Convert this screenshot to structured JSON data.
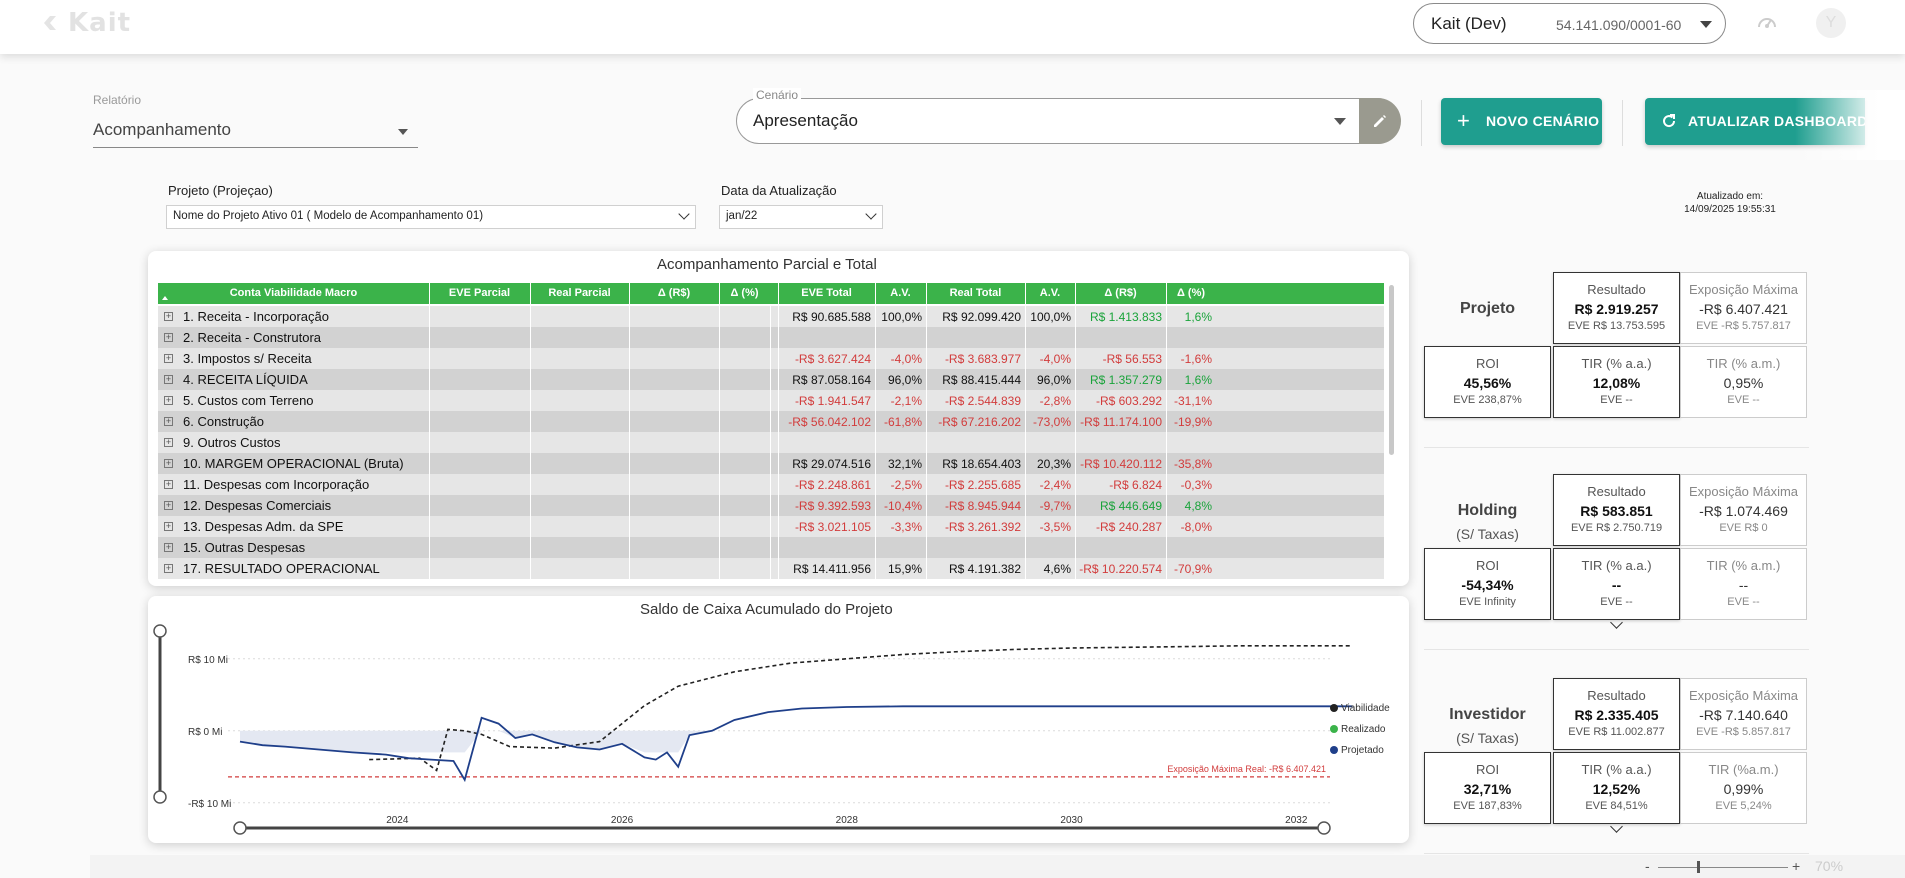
{
  "app": {
    "logo": "Kait"
  },
  "company": {
    "name": "Kait (Dev)",
    "cnpj": "54.141.090/0001-60"
  },
  "filters": {
    "relatorio_label": "Relatório",
    "relatorio_value": "Acompanhamento",
    "cenario_label": "Cenário",
    "cenario_value": "Apresentação",
    "btn_novo": "NOVO CENÁRIO",
    "btn_atualizar": "ATUALIZAR DASHBOARD"
  },
  "report": {
    "projeto_label": "Projeto (Projeçao)",
    "projeto_value": "Nome do Projeto Ativo 01 ( Modelo de Acompanhamento 01)",
    "data_label": "Data da Atualização",
    "data_value": "jan/22",
    "updated_label": "Atualizado em:",
    "updated_value": "14/09/2025 19:55:31"
  },
  "table": {
    "title": "Acompanhamento Parcial e Total",
    "headers": [
      "Conta Viabilidade Macro",
      "EVE Parcial",
      "Real Parcial",
      "Δ (R$)",
      "Δ (%)",
      "EVE Total",
      "A.V.",
      "Real Total",
      "A.V.",
      "Δ (R$)",
      "Δ (%)"
    ],
    "rows": [
      {
        "name": "1. Receita - Incorporação",
        "eve_total": "R$ 90.685.588",
        "av1": "100,0%",
        "real_total": "R$ 92.099.420",
        "av2": "100,0%",
        "d_rs": "R$ 1.413.833",
        "d_pct": "1,6%",
        "tone": [
          "blk",
          "blk",
          "blk",
          "blk",
          "pos",
          "pos"
        ]
      },
      {
        "name": "2. Receita - Construtora",
        "eve_total": "",
        "av1": "",
        "real_total": "",
        "av2": "",
        "d_rs": "",
        "d_pct": "",
        "tone": [
          "blk",
          "blk",
          "blk",
          "blk",
          "blk",
          "blk"
        ]
      },
      {
        "name": "3. Impostos s/ Receita",
        "eve_total": "-R$ 3.627.424",
        "av1": "-4,0%",
        "real_total": "-R$ 3.683.977",
        "av2": "-4,0%",
        "d_rs": "-R$ 56.553",
        "d_pct": "-1,6%",
        "tone": [
          "neg",
          "neg",
          "neg",
          "neg",
          "neg",
          "neg"
        ]
      },
      {
        "name": "4. RECEITA LÍQUIDA",
        "eve_total": "R$ 87.058.164",
        "av1": "96,0%",
        "real_total": "R$ 88.415.444",
        "av2": "96,0%",
        "d_rs": "R$ 1.357.279",
        "d_pct": "1,6%",
        "tone": [
          "blk",
          "blk",
          "blk",
          "blk",
          "pos",
          "pos"
        ]
      },
      {
        "name": "5. Custos com Terreno",
        "eve_total": "-R$ 1.941.547",
        "av1": "-2,1%",
        "real_total": "-R$ 2.544.839",
        "av2": "-2,8%",
        "d_rs": "-R$ 603.292",
        "d_pct": "-31,1%",
        "tone": [
          "neg",
          "neg",
          "neg",
          "neg",
          "neg",
          "neg"
        ]
      },
      {
        "name": "6. Construção",
        "eve_total": "-R$ 56.042.102",
        "av1": "-61,8%",
        "real_total": "-R$ 67.216.202",
        "av2": "-73,0%",
        "d_rs": "-R$ 11.174.100",
        "d_pct": "-19,9%",
        "tone": [
          "neg",
          "neg",
          "neg",
          "neg",
          "neg",
          "neg"
        ]
      },
      {
        "name": "9. Outros Custos",
        "eve_total": "",
        "av1": "",
        "real_total": "",
        "av2": "",
        "d_rs": "",
        "d_pct": "",
        "tone": [
          "blk",
          "blk",
          "blk",
          "blk",
          "blk",
          "blk"
        ]
      },
      {
        "name": "10. MARGEM OPERACIONAL (Bruta)",
        "eve_total": "R$ 29.074.516",
        "av1": "32,1%",
        "real_total": "R$ 18.654.403",
        "av2": "20,3%",
        "d_rs": "-R$ 10.420.112",
        "d_pct": "-35,8%",
        "tone": [
          "blk",
          "blk",
          "blk",
          "blk",
          "neg",
          "neg"
        ]
      },
      {
        "name": "11. Despesas com Incorporação",
        "eve_total": "-R$ 2.248.861",
        "av1": "-2,5%",
        "real_total": "-R$ 2.255.685",
        "av2": "-2,4%",
        "d_rs": "-R$ 6.824",
        "d_pct": "-0,3%",
        "tone": [
          "neg",
          "neg",
          "neg",
          "neg",
          "neg",
          "neg"
        ]
      },
      {
        "name": "12. Despesas Comerciais",
        "eve_total": "-R$ 9.392.593",
        "av1": "-10,4%",
        "real_total": "-R$ 8.945.944",
        "av2": "-9,7%",
        "d_rs": "R$ 446.649",
        "d_pct": "4,8%",
        "tone": [
          "neg",
          "neg",
          "neg",
          "neg",
          "pos",
          "pos"
        ]
      },
      {
        "name": "13. Despesas Adm. da SPE",
        "eve_total": "-R$ 3.021.105",
        "av1": "-3,3%",
        "real_total": "-R$ 3.261.392",
        "av2": "-3,5%",
        "d_rs": "-R$ 240.287",
        "d_pct": "-8,0%",
        "tone": [
          "neg",
          "neg",
          "neg",
          "neg",
          "neg",
          "neg"
        ]
      },
      {
        "name": "15. Outras Despesas",
        "eve_total": "",
        "av1": "",
        "real_total": "",
        "av2": "",
        "d_rs": "",
        "d_pct": "",
        "tone": [
          "blk",
          "blk",
          "blk",
          "blk",
          "blk",
          "blk"
        ]
      },
      {
        "name": "17. RESULTADO OPERACIONAL",
        "eve_total": "R$ 14.411.956",
        "av1": "15,9%",
        "real_total": "R$ 4.191.382",
        "av2": "4,6%",
        "d_rs": "-R$ 10.220.574",
        "d_pct": "-70,9%",
        "tone": [
          "blk",
          "blk",
          "blk",
          "blk",
          "neg",
          "neg"
        ]
      }
    ]
  },
  "kpis": [
    {
      "name": "Projeto",
      "subtitle": "",
      "resultado": {
        "title": "Resultado",
        "value": "R$ 2.919.257",
        "sub": "EVE R$ 13.753.595"
      },
      "exposicao": {
        "title": "Exposição Máxima",
        "value": "-R$ 6.407.421",
        "sub": "EVE -R$ 5.757.817"
      },
      "roi": {
        "title": "ROI",
        "value": "45,56%",
        "sub": "EVE 238,87%"
      },
      "tir_aa": {
        "title": "TIR (% a.a.)",
        "value": "12,08%",
        "sub": "EVE --"
      },
      "tir_am": {
        "title": "TIR (% a.m.)",
        "value": "0,95%",
        "sub": "EVE --"
      }
    },
    {
      "name": "Holding",
      "subtitle": "(S/ Taxas)",
      "resultado": {
        "title": "Resultado",
        "value": "R$ 583.851",
        "sub": "EVE R$ 2.750.719"
      },
      "exposicao": {
        "title": "Exposição Máxima",
        "value": "-R$ 1.074.469",
        "sub": "EVE R$ 0"
      },
      "roi": {
        "title": "ROI",
        "value": "-54,34%",
        "sub": "EVE Infinity"
      },
      "tir_aa": {
        "title": "TIR (% a.a.)",
        "value": "--",
        "sub": "EVE --"
      },
      "tir_am": {
        "title": "TIR (% a.m.)",
        "value": "--",
        "sub": "EVE --"
      }
    },
    {
      "name": "Investidor",
      "subtitle": "(S/ Taxas)",
      "resultado": {
        "title": "Resultado",
        "value": "R$ 2.335.405",
        "sub": "EVE R$ 11.002.877"
      },
      "exposicao": {
        "title": "Exposição Máxima",
        "value": "-R$ 7.140.640",
        "sub": "EVE -R$ 5.857.817"
      },
      "roi": {
        "title": "ROI",
        "value": "32,71%",
        "sub": "EVE 187,83%"
      },
      "tir_aa": {
        "title": "TIR (% a.a.)",
        "value": "12,52%",
        "sub": "EVE 84,51%"
      },
      "tir_am": {
        "title": "TIR (%a.m.)",
        "value": "0,99%",
        "sub": "EVE 5,24%"
      }
    }
  ],
  "chart_data": {
    "type": "line",
    "title": "Saldo de Caixa Acumulado do Projeto",
    "y_tick_labels": [
      "R$ 10 Mi",
      "R$ 0 Mi",
      "-R$ 10 Mi"
    ],
    "y_ticks": [
      10,
      0,
      -10
    ],
    "x_tick_labels": [
      "2024",
      "2026",
      "2028",
      "2030",
      "2032"
    ],
    "x_ticks": [
      2024,
      2026,
      2028,
      2030,
      2032
    ],
    "xlim": [
      2022.6,
      2032.3
    ],
    "ylim": [
      -11,
      14
    ],
    "grid": true,
    "legend": "right",
    "annotation": "Exposição Máxima Real: -R$ 6.407.421",
    "exposure_line": -6.4,
    "series": [
      {
        "name": "Viabilidade",
        "color": "#222222",
        "style": "dashed",
        "x": [
          2023.75,
          2024.2,
          2024.35,
          2024.45,
          2024.6,
          2024.75,
          2025.0,
          2025.4,
          2025.8,
          2026.2,
          2026.5,
          2027.0,
          2027.5,
          2028.0,
          2028.5,
          2029.0,
          2029.5,
          2030.0,
          2030.5,
          2031.0,
          2031.5,
          2032.0,
          2032.5
        ],
        "y": [
          -4,
          -3.8,
          -5.5,
          0.2,
          0,
          -0.5,
          -2.2,
          -2.4,
          -1.5,
          3.5,
          6.2,
          8.2,
          9.4,
          10.0,
          10.6,
          11.0,
          11.3,
          11.5,
          11.6,
          11.7,
          11.8,
          11.8,
          11.8
        ]
      },
      {
        "name": "Realizado",
        "color": "#3bb34a",
        "style": "solid",
        "x": [],
        "y": []
      },
      {
        "name": "Projetado",
        "color": "#1f3f8a",
        "style": "solid",
        "x": [
          2022.6,
          2022.8,
          2023.0,
          2023.3,
          2023.6,
          2023.9,
          2024.1,
          2024.3,
          2024.5,
          2024.6,
          2024.75,
          2024.9,
          2025.05,
          2025.2,
          2025.4,
          2025.6,
          2025.8,
          2026.0,
          2026.2,
          2026.3,
          2026.4,
          2026.5,
          2026.6,
          2026.8,
          2027.0,
          2027.3,
          2027.6,
          2028.0,
          2028.5,
          2029.0,
          2030.0,
          2031.0,
          2032.0,
          2032.5
        ],
        "y": [
          -1.5,
          -2.0,
          -2.2,
          -2.6,
          -3.0,
          -3.3,
          -3.8,
          -4.0,
          -4.2,
          -6.8,
          1.8,
          1.0,
          -1.0,
          -0.5,
          -1.6,
          -2.3,
          -2.6,
          -1.8,
          -3.7,
          -4.0,
          -3.0,
          -5.0,
          -0.6,
          0.0,
          1.5,
          2.6,
          3.1,
          3.3,
          3.4,
          3.4,
          3.4,
          3.4,
          3.4,
          3.4
        ]
      }
    ],
    "band": {
      "from": 0,
      "to": -3.0
    }
  },
  "zoom": {
    "minus": "-",
    "plus": "+",
    "level": "70%"
  }
}
